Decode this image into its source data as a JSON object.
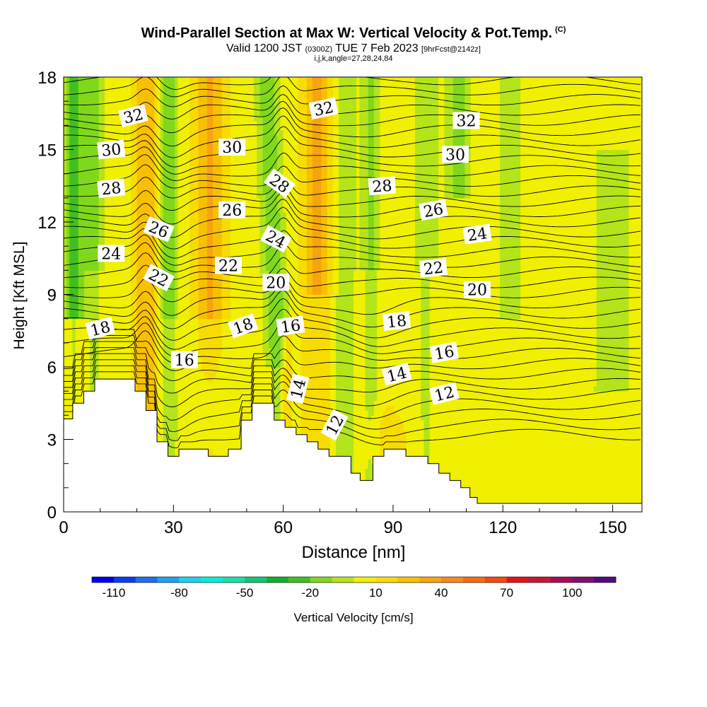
{
  "title": {
    "main": "Wind-Parallel Section at Max W: Vertical Velocity & Pot.Temp.",
    "main_corner": "(C)",
    "valid_text": "Valid 1200 JST",
    "valid_small1": "(0300Z)",
    "valid_date": "TUE 7 Feb 2023",
    "valid_small2": "[9hrFcst@2142z]",
    "ijk_line": "i,j,k,angle=27,28,24,84"
  },
  "chart_data": {
    "type": "heatmap",
    "xlabel": "Distance [nm]",
    "ylabel": "Height [Kft MSL]",
    "xlim": [
      0,
      158
    ],
    "ylim": [
      0,
      18
    ],
    "x_ticks": [
      0,
      30,
      60,
      90,
      120,
      150
    ],
    "y_ticks": [
      0,
      3,
      6,
      9,
      12,
      15,
      18
    ],
    "fill_variable": "Vertical Velocity [cm/s]",
    "colorbar": {
      "label": "Vertical Velocity [cm/s]",
      "range": [
        -120,
        120
      ],
      "tick_labels": [
        -110,
        -80,
        -50,
        -20,
        10,
        40,
        70,
        100
      ],
      "colors": [
        "#0000f0",
        "#0a3cf5",
        "#1c6ff0",
        "#1ca3f2",
        "#1cd0f0",
        "#00f0d8",
        "#18e0a8",
        "#10c878",
        "#10b030",
        "#40c020",
        "#80d81a",
        "#b4e41a",
        "#f0f000",
        "#f8dc00",
        "#f8c000",
        "#f8a410",
        "#f88820",
        "#f86c10",
        "#f84810",
        "#e81414",
        "#c81438",
        "#a80c58",
        "#801070",
        "#500c80"
      ]
    },
    "contour_variable": "Potential Temperature (C)",
    "contour_labels": [
      {
        "text": "32",
        "x": 19,
        "y": 16.4,
        "angle": -14
      },
      {
        "text": "30",
        "x": 13,
        "y": 15.0,
        "angle": -6
      },
      {
        "text": "28",
        "x": 13,
        "y": 13.4,
        "angle": -6
      },
      {
        "text": "26",
        "x": 26,
        "y": 11.7,
        "angle": 22
      },
      {
        "text": "24",
        "x": 13,
        "y": 10.7,
        "angle": 0
      },
      {
        "text": "22",
        "x": 26,
        "y": 9.7,
        "angle": 28
      },
      {
        "text": "18",
        "x": 10,
        "y": 7.6,
        "angle": -14
      },
      {
        "text": "16",
        "x": 33,
        "y": 6.3,
        "angle": 0
      },
      {
        "text": "30",
        "x": 46,
        "y": 15.1,
        "angle": 0
      },
      {
        "text": "26",
        "x": 46,
        "y": 12.5,
        "angle": 0
      },
      {
        "text": "22",
        "x": 45,
        "y": 10.2,
        "angle": 0
      },
      {
        "text": "18",
        "x": 49,
        "y": 7.7,
        "angle": -20
      },
      {
        "text": "28",
        "x": 59,
        "y": 13.6,
        "angle": 36
      },
      {
        "text": "24",
        "x": 58,
        "y": 11.3,
        "angle": 28
      },
      {
        "text": "20",
        "x": 58,
        "y": 9.5,
        "angle": 0
      },
      {
        "text": "16",
        "x": 62,
        "y": 7.7,
        "angle": -8
      },
      {
        "text": "14",
        "x": 64,
        "y": 5.1,
        "angle": -76
      },
      {
        "text": "12",
        "x": 74,
        "y": 3.6,
        "angle": -62
      },
      {
        "text": "32",
        "x": 71,
        "y": 16.7,
        "angle": -12
      },
      {
        "text": "28",
        "x": 87,
        "y": 13.5,
        "angle": -4
      },
      {
        "text": "18",
        "x": 91,
        "y": 7.9,
        "angle": -6
      },
      {
        "text": "14",
        "x": 91,
        "y": 5.7,
        "angle": -14
      },
      {
        "text": "26",
        "x": 101,
        "y": 12.5,
        "angle": -10
      },
      {
        "text": "22",
        "x": 101,
        "y": 10.1,
        "angle": -6
      },
      {
        "text": "16",
        "x": 104,
        "y": 6.6,
        "angle": -10
      },
      {
        "text": "12",
        "x": 104,
        "y": 4.9,
        "angle": -14
      },
      {
        "text": "32",
        "x": 110,
        "y": 16.2,
        "angle": 0
      },
      {
        "text": "30",
        "x": 107,
        "y": 14.8,
        "angle": 0
      },
      {
        "text": "24",
        "x": 113,
        "y": 11.5,
        "angle": -8
      },
      {
        "text": "20",
        "x": 113,
        "y": 9.2,
        "angle": 0
      }
    ]
  }
}
